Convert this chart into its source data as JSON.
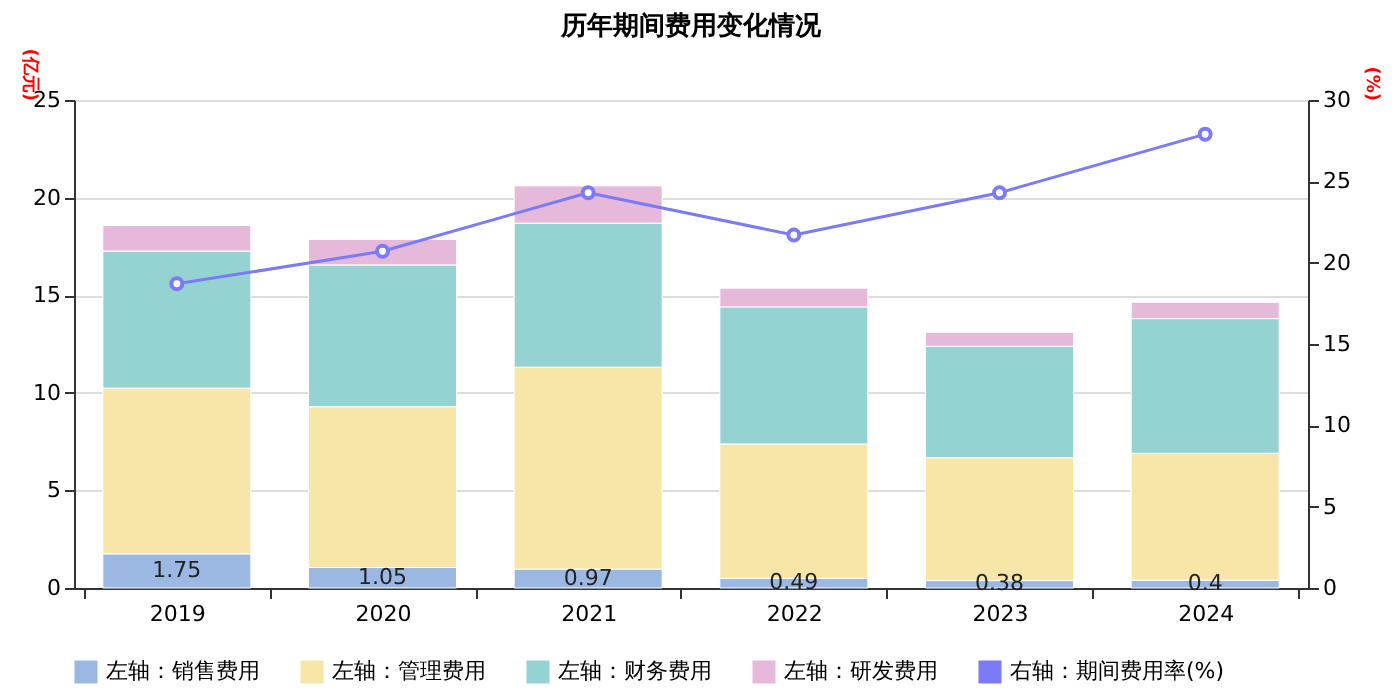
{
  "chart_data": {
    "type": "bar",
    "title": "历年期间费用变化情况",
    "ylabel": "(亿元)",
    "y2label": "(%)",
    "categories": [
      "2019",
      "2020",
      "2021",
      "2022",
      "2023",
      "2024"
    ],
    "stacked": true,
    "ylim": [
      0,
      25
    ],
    "yticks": [
      0,
      5,
      10,
      15,
      20,
      25
    ],
    "y2lim": [
      0,
      30
    ],
    "y2ticks": [
      0,
      5,
      10,
      15,
      20,
      25,
      30
    ],
    "grid": "y",
    "legend": "bottom",
    "series": [
      {
        "name": "左轴：销售费用",
        "color": "#9bb8e3",
        "values": [
          1.75,
          1.05,
          0.97,
          0.49,
          0.38,
          0.4
        ],
        "value_labels": [
          "1.75",
          "1.05",
          "0.97",
          "0.49",
          "0.38",
          "0.4"
        ]
      },
      {
        "name": "左轴：管理费用",
        "color": "#f8e6a8",
        "values": [
          8.49,
          8.24,
          10.34,
          6.89,
          6.29,
          6.5
        ]
      },
      {
        "name": "左轴：财务费用",
        "color": "#95d3d3",
        "values": [
          7.02,
          7.26,
          7.38,
          7.02,
          5.71,
          6.9
        ]
      },
      {
        "name": "左轴：研发费用",
        "color": "#e6b8d9",
        "values": [
          1.31,
          1.31,
          1.91,
          0.96,
          0.72,
          0.84
        ]
      },
      {
        "name": "右轴：期间费用率(%)",
        "type": "line",
        "axis": "y2",
        "marker": "circle",
        "color": "#7b7bf7",
        "values": [
          18.7,
          20.7,
          24.3,
          21.7,
          24.3,
          27.9
        ]
      }
    ]
  }
}
